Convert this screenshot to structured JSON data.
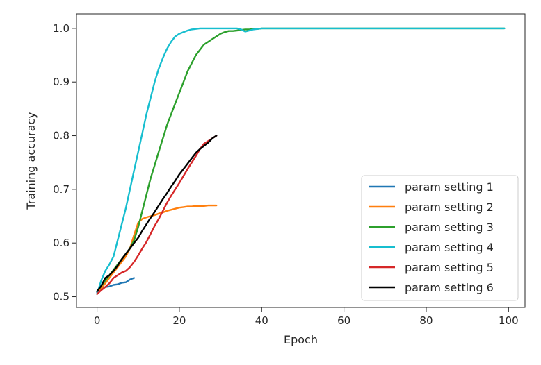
{
  "chart_data": {
    "type": "line",
    "title": "",
    "xlabel": "Epoch",
    "ylabel": "Training accuracy",
    "xlim": [
      -5,
      104
    ],
    "ylim": [
      0.48,
      1.027
    ],
    "xticks": [
      0,
      20,
      40,
      60,
      80,
      100
    ],
    "yticks": [
      0.5,
      0.6,
      0.7,
      0.8,
      0.9,
      1.0
    ],
    "xtick_labels": [
      "0",
      "20",
      "40",
      "60",
      "80",
      "100"
    ],
    "ytick_labels": [
      "0.5",
      "0.6",
      "0.7",
      "0.8",
      "0.9",
      "1.0"
    ],
    "grid": false,
    "legend_position": "lower right",
    "series": [
      {
        "name": "param setting 1",
        "color": "#1f77b4",
        "x": [
          0,
          1,
          2,
          3,
          4,
          5,
          6,
          7,
          8,
          9
        ],
        "y": [
          0.508,
          0.513,
          0.518,
          0.519,
          0.522,
          0.523,
          0.526,
          0.527,
          0.532,
          0.535
        ]
      },
      {
        "name": "param setting 2",
        "color": "#ff7f0e",
        "x": [
          0,
          1,
          2,
          3,
          4,
          5,
          6,
          7,
          8,
          9,
          10,
          11,
          12,
          13,
          14,
          15,
          16,
          17,
          18,
          19,
          20,
          21,
          22,
          23,
          24,
          25,
          26,
          27,
          28,
          29
        ],
        "y": [
          0.505,
          0.515,
          0.525,
          0.535,
          0.545,
          0.555,
          0.565,
          0.575,
          0.59,
          0.615,
          0.638,
          0.645,
          0.648,
          0.65,
          0.652,
          0.655,
          0.657,
          0.66,
          0.662,
          0.664,
          0.666,
          0.667,
          0.668,
          0.668,
          0.669,
          0.669,
          0.669,
          0.67,
          0.67,
          0.67
        ]
      },
      {
        "name": "param setting 3",
        "color": "#2ca02c",
        "x": [
          0,
          1,
          2,
          3,
          4,
          5,
          6,
          7,
          8,
          9,
          10,
          11,
          12,
          13,
          14,
          15,
          16,
          17,
          18,
          19,
          20,
          21,
          22,
          23,
          24,
          25,
          26,
          27,
          28,
          29,
          30,
          31,
          32,
          33,
          34,
          35,
          36,
          37,
          38,
          39,
          40,
          50,
          60,
          70,
          80,
          90,
          99
        ],
        "y": [
          0.51,
          0.52,
          0.53,
          0.54,
          0.55,
          0.56,
          0.57,
          0.58,
          0.59,
          0.605,
          0.63,
          0.66,
          0.69,
          0.72,
          0.745,
          0.77,
          0.795,
          0.82,
          0.84,
          0.86,
          0.88,
          0.9,
          0.92,
          0.935,
          0.95,
          0.96,
          0.97,
          0.975,
          0.98,
          0.985,
          0.99,
          0.993,
          0.995,
          0.995,
          0.996,
          0.997,
          0.998,
          0.998,
          0.999,
          0.999,
          1.0,
          1.0,
          1.0,
          1.0,
          1.0,
          1.0,
          1.0
        ]
      },
      {
        "name": "param setting 4",
        "color": "#17becf",
        "x": [
          0,
          1,
          2,
          3,
          4,
          5,
          6,
          7,
          8,
          9,
          10,
          11,
          12,
          13,
          14,
          15,
          16,
          17,
          18,
          19,
          20,
          21,
          22,
          23,
          24,
          25,
          26,
          27,
          28,
          29,
          30,
          31,
          32,
          33,
          34,
          35,
          36,
          37,
          38,
          39,
          40,
          50,
          60,
          70,
          80,
          90,
          99
        ],
        "y": [
          0.505,
          0.53,
          0.548,
          0.56,
          0.575,
          0.605,
          0.635,
          0.665,
          0.7,
          0.735,
          0.77,
          0.805,
          0.84,
          0.87,
          0.9,
          0.925,
          0.945,
          0.962,
          0.975,
          0.985,
          0.99,
          0.993,
          0.996,
          0.998,
          0.999,
          1.0,
          1.0,
          1.0,
          1.0,
          1.0,
          1.0,
          1.0,
          1.0,
          1.0,
          1.0,
          0.998,
          0.994,
          0.996,
          0.998,
          0.999,
          1.0,
          1.0,
          1.0,
          1.0,
          1.0,
          1.0,
          1.0
        ]
      },
      {
        "name": "param setting 5",
        "color": "#d62728",
        "x": [
          0,
          1,
          2,
          3,
          4,
          5,
          6,
          7,
          8,
          9,
          10,
          11,
          12,
          13,
          14,
          15,
          16,
          17,
          18,
          19,
          20,
          21,
          22,
          23,
          24,
          25,
          26,
          27,
          28,
          29
        ],
        "y": [
          0.505,
          0.512,
          0.518,
          0.525,
          0.535,
          0.54,
          0.545,
          0.548,
          0.555,
          0.565,
          0.577,
          0.59,
          0.602,
          0.617,
          0.632,
          0.645,
          0.66,
          0.675,
          0.688,
          0.7,
          0.712,
          0.725,
          0.738,
          0.75,
          0.762,
          0.775,
          0.785,
          0.79,
          0.795,
          0.8
        ]
      },
      {
        "name": "param setting 6",
        "color": "#000000",
        "x": [
          0,
          1,
          2,
          3,
          4,
          5,
          6,
          7,
          8,
          9,
          10,
          11,
          12,
          13,
          14,
          15,
          16,
          17,
          18,
          19,
          20,
          21,
          22,
          23,
          24,
          25,
          26,
          27,
          28,
          29
        ],
        "y": [
          0.51,
          0.52,
          0.535,
          0.54,
          0.548,
          0.558,
          0.57,
          0.58,
          0.59,
          0.6,
          0.61,
          0.623,
          0.635,
          0.647,
          0.658,
          0.67,
          0.682,
          0.693,
          0.705,
          0.716,
          0.728,
          0.738,
          0.748,
          0.758,
          0.768,
          0.775,
          0.781,
          0.787,
          0.795,
          0.8
        ]
      }
    ]
  }
}
